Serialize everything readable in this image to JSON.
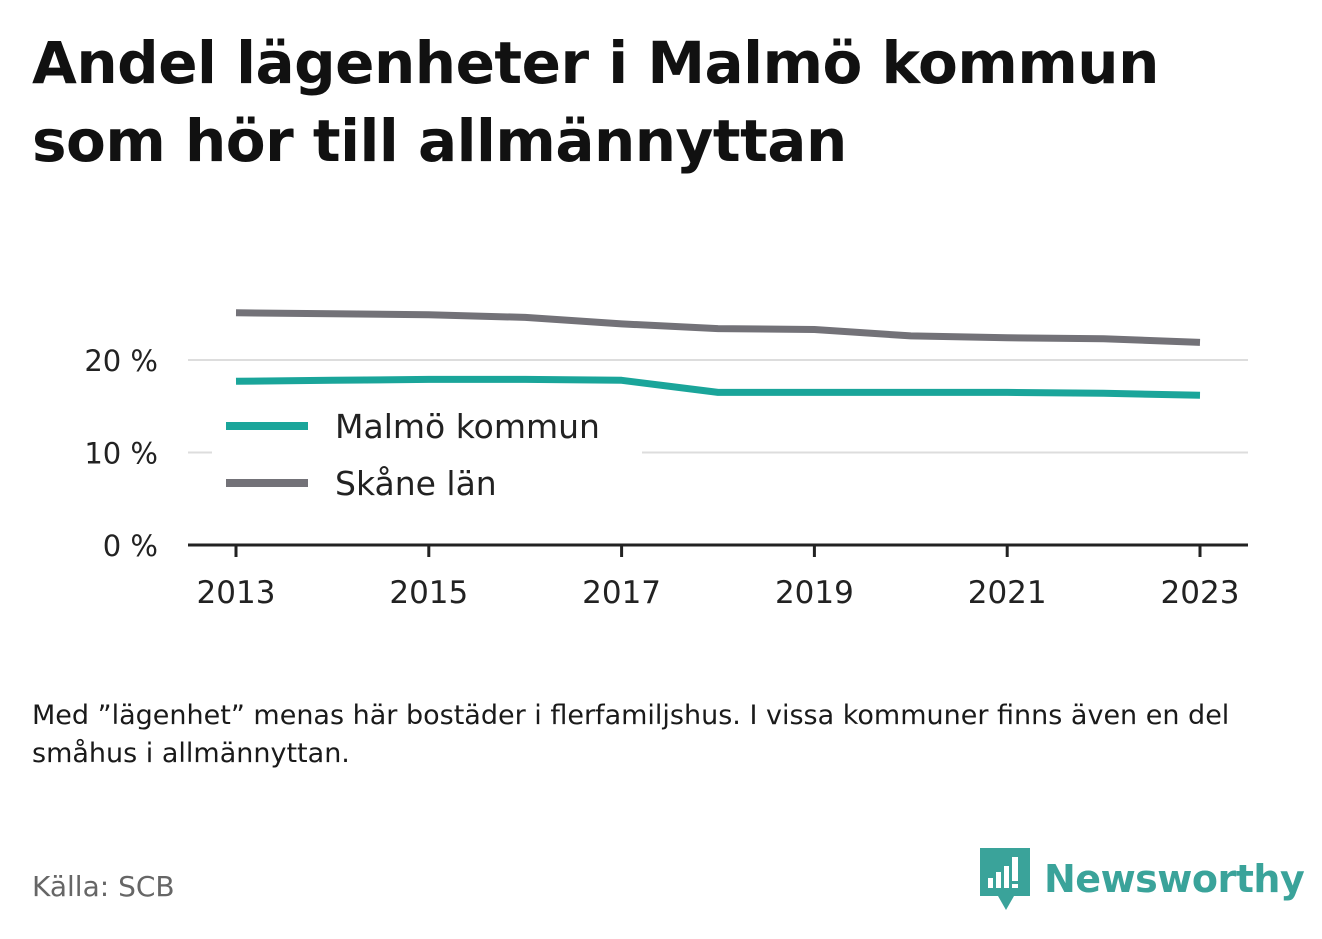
{
  "title": "Andel lägenheter i Malmö kommun som hör till allmännyttan",
  "note": "Med ”lägenhet” menas här bostäder i flerfamiljshus. I vissa kommuner finns även en del småhus i allmännyttan.",
  "source": "Källa: SCB",
  "brand": {
    "name": "Newsworthy",
    "color": "#3aa39a"
  },
  "chart_data": {
    "type": "line",
    "x": [
      2013,
      2014,
      2015,
      2016,
      2017,
      2018,
      2019,
      2020,
      2021,
      2022,
      2023
    ],
    "x_ticks": [
      "2013",
      "2015",
      "2017",
      "2019",
      "2021",
      "2023"
    ],
    "y_ticks": [
      "0 %",
      "10 %",
      "20 %"
    ],
    "ylim": [
      0,
      26
    ],
    "grid": true,
    "legend_position": "left-inside",
    "series": [
      {
        "name": "Malmö kommun",
        "color": "#1aa59a",
        "values": [
          17.7,
          17.8,
          17.9,
          17.9,
          17.8,
          16.5,
          16.5,
          16.5,
          16.5,
          16.4,
          16.2
        ]
      },
      {
        "name": "Skåne län",
        "color": "#737278",
        "values": [
          25.1,
          25.0,
          24.9,
          24.6,
          23.9,
          23.4,
          23.3,
          22.6,
          22.4,
          22.3,
          21.9
        ]
      }
    ]
  }
}
